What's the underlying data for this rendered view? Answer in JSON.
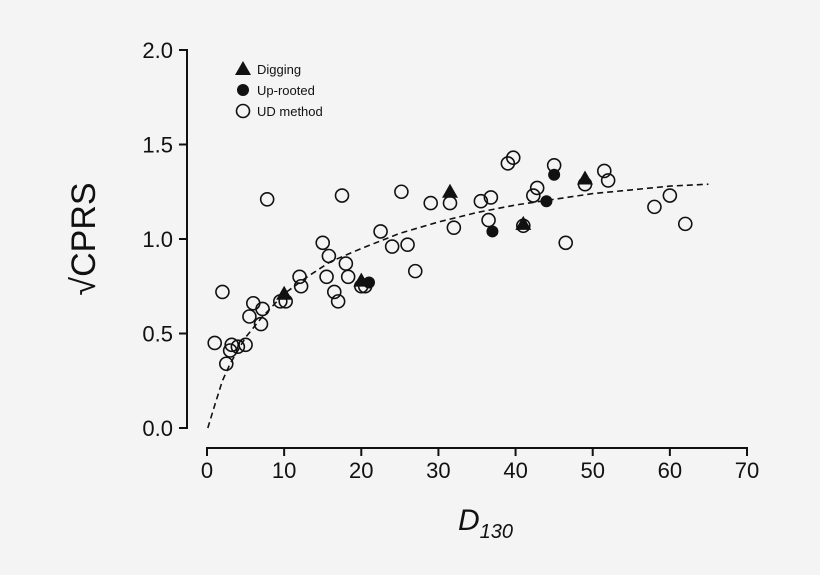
{
  "chart_data": {
    "type": "scatter",
    "title": "",
    "xlabel": "D",
    "xlabel_subscript": "130",
    "ylabel": "CPRS",
    "ylabel_prefix": "√",
    "xlim": [
      0,
      70
    ],
    "ylim": [
      0,
      2.0
    ],
    "x_ticks": [
      0,
      10,
      20,
      30,
      40,
      50,
      60,
      70
    ],
    "y_ticks": [
      0.0,
      0.5,
      1.0,
      1.5,
      2.0
    ],
    "x_tick_labels": [
      "0",
      "10",
      "20",
      "30",
      "40",
      "50",
      "60",
      "70"
    ],
    "y_tick_labels": [
      "0.0",
      "0.5",
      "1.0",
      "1.5",
      "2.0"
    ],
    "grid": false,
    "legend_position": "top-left",
    "series": [
      {
        "name": "Digging",
        "marker": "filled-triangle",
        "color": "#111111",
        "points": [
          [
            10.0,
            0.71
          ],
          [
            20.0,
            0.78
          ],
          [
            31.5,
            1.25
          ],
          [
            41.0,
            1.08
          ],
          [
            49.0,
            1.32
          ]
        ]
      },
      {
        "name": "Up-rooted",
        "marker": "filled-circle",
        "color": "#111111",
        "points": [
          [
            21.0,
            0.77
          ],
          [
            37.0,
            1.04
          ],
          [
            44.0,
            1.2
          ],
          [
            45.0,
            1.34
          ]
        ]
      },
      {
        "name": "UD method",
        "marker": "open-circle",
        "color": "#111111",
        "points": [
          [
            1.0,
            0.45
          ],
          [
            2.0,
            0.72
          ],
          [
            2.5,
            0.34
          ],
          [
            3.0,
            0.41
          ],
          [
            3.2,
            0.44
          ],
          [
            4.0,
            0.43
          ],
          [
            5.0,
            0.44
          ],
          [
            5.5,
            0.59
          ],
          [
            6.0,
            0.66
          ],
          [
            7.0,
            0.55
          ],
          [
            7.2,
            0.63
          ],
          [
            7.8,
            1.21
          ],
          [
            9.5,
            0.67
          ],
          [
            10.2,
            0.67
          ],
          [
            12.0,
            0.8
          ],
          [
            12.2,
            0.75
          ],
          [
            15.0,
            0.98
          ],
          [
            15.5,
            0.8
          ],
          [
            15.8,
            0.91
          ],
          [
            16.5,
            0.72
          ],
          [
            17.0,
            0.67
          ],
          [
            17.5,
            1.23
          ],
          [
            18.0,
            0.87
          ],
          [
            18.3,
            0.8
          ],
          [
            20.0,
            0.75
          ],
          [
            20.5,
            0.75
          ],
          [
            22.5,
            1.04
          ],
          [
            24.0,
            0.96
          ],
          [
            25.2,
            1.25
          ],
          [
            26.0,
            0.97
          ],
          [
            27.0,
            0.83
          ],
          [
            29.0,
            1.19
          ],
          [
            31.5,
            1.19
          ],
          [
            32.0,
            1.06
          ],
          [
            35.5,
            1.2
          ],
          [
            36.5,
            1.1
          ],
          [
            36.8,
            1.22
          ],
          [
            39.0,
            1.4
          ],
          [
            39.7,
            1.43
          ],
          [
            41.0,
            1.07
          ],
          [
            42.3,
            1.23
          ],
          [
            42.8,
            1.27
          ],
          [
            45.0,
            1.39
          ],
          [
            46.5,
            0.98
          ],
          [
            49.0,
            1.29
          ],
          [
            51.5,
            1.36
          ],
          [
            52.0,
            1.31
          ],
          [
            58.0,
            1.17
          ],
          [
            60.0,
            1.23
          ],
          [
            62.0,
            1.08
          ]
        ]
      }
    ],
    "fit_curve": {
      "style": "dashed",
      "color": "#111111",
      "points": [
        [
          0.1,
          0.0
        ],
        [
          1,
          0.12
        ],
        [
          2,
          0.25
        ],
        [
          3,
          0.34
        ],
        [
          5,
          0.48
        ],
        [
          7,
          0.58
        ],
        [
          10,
          0.71
        ],
        [
          13,
          0.8
        ],
        [
          16,
          0.88
        ],
        [
          20,
          0.95
        ],
        [
          25,
          1.03
        ],
        [
          30,
          1.09
        ],
        [
          35,
          1.14
        ],
        [
          40,
          1.18
        ],
        [
          45,
          1.21
        ],
        [
          50,
          1.24
        ],
        [
          55,
          1.26
        ],
        [
          60,
          1.28
        ],
        [
          65,
          1.29
        ]
      ]
    }
  }
}
